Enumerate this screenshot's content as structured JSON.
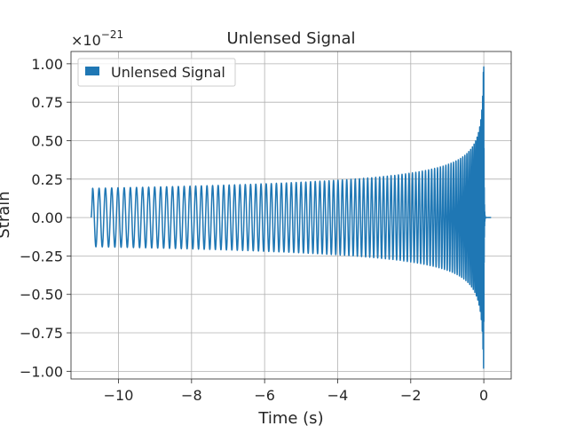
{
  "chart_data": {
    "type": "line",
    "title": "Unlensed Signal",
    "xlabel": "Time (s)",
    "ylabel": "Strain",
    "y_offset_label": "×10",
    "y_offset_exponent": "−21",
    "xlim": [
      -11.3,
      0.75
    ],
    "ylim": [
      -1.05,
      1.08
    ],
    "x_ticks": [
      -10,
      -8,
      -6,
      -4,
      -2,
      0
    ],
    "x_tick_labels": [
      "−10",
      "−8",
      "−6",
      "−4",
      "−2",
      "0"
    ],
    "y_ticks": [
      1.0,
      0.75,
      0.5,
      0.25,
      0.0,
      -0.25,
      -0.5,
      -0.75,
      -1.0
    ],
    "y_tick_labels": [
      "1.00",
      "0.75",
      "0.50",
      "0.25",
      "0.00",
      "−0.25",
      "−0.50",
      "−0.75",
      "−1.00"
    ],
    "grid": true,
    "legend_position": "top-left",
    "series": [
      {
        "name": "Unlensed Signal",
        "color": "#1f77b4",
        "t_start": -10.75,
        "t_merger": 0.0,
        "t_end": 0.2,
        "start_amplitude": 0.19,
        "peak_amplitude": 0.98,
        "start_frequency_hz": 5.7
      }
    ]
  }
}
